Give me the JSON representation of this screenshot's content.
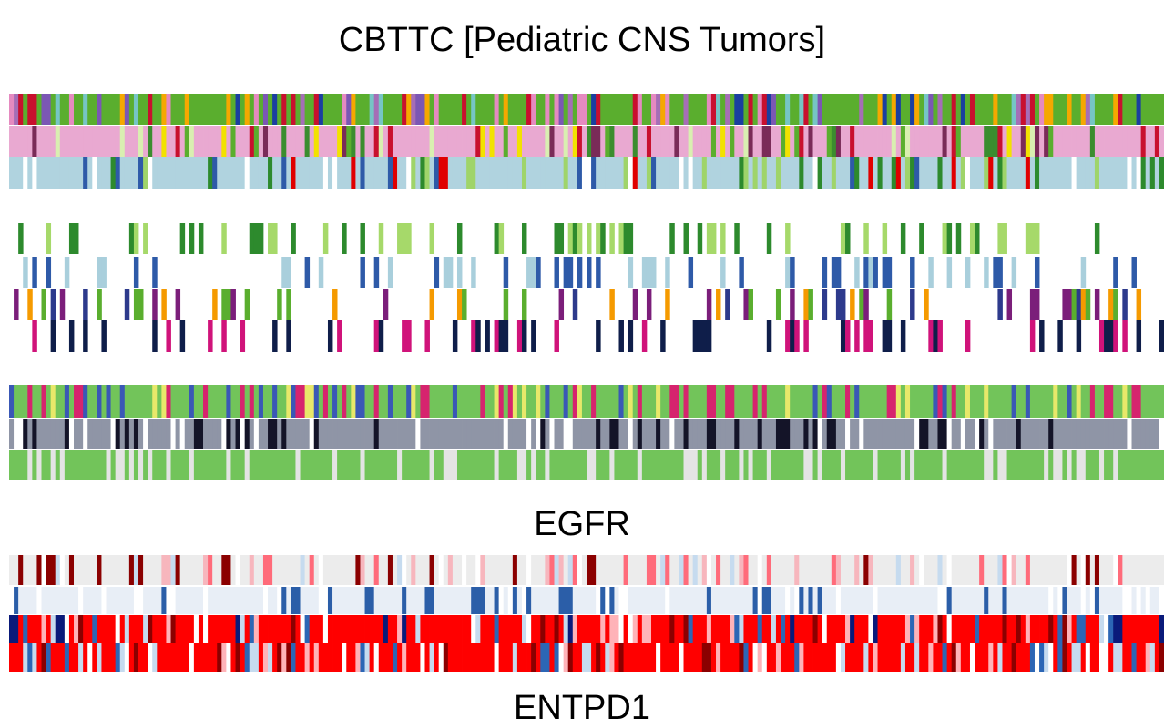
{
  "header": {
    "title": "CBTTC [Pediatric CNS Tumors]"
  },
  "panels": {
    "egfr_label": "EGFR",
    "next_label": "ENTPD1"
  },
  "chart_data": {
    "type": "heatmap",
    "title": "CBTTC [Pediatric CNS Tumors]",
    "samples": 250,
    "gene_panels": [
      "EGFR",
      "ENTPD1"
    ],
    "tracks": [
      {
        "group": "annotation",
        "palette": [
          "#5aae2e",
          "#7b57b4",
          "#e58ac0",
          "#f5a800",
          "#1a3fa0",
          "#c8102e",
          "#76c5c5",
          "#a56eb6"
        ]
      },
      {
        "group": "annotation",
        "palette": [
          "#e9a9d1",
          "#e9a9d1",
          "#3b8d2f",
          "#f2e200",
          "#c8102e",
          "#7a2b58",
          "#d9efb1",
          "#5aae2e"
        ]
      },
      {
        "group": "annotation",
        "palette": [
          "#b0d3df",
          "#b0d3df",
          "#e00000",
          "#2d8a2d",
          "#9fd46a",
          "#2e5aa8",
          "#ffffff"
        ]
      },
      {
        "group": "sparse",
        "palette": [
          "#2d8a2d",
          "#a6d96a"
        ]
      },
      {
        "group": "sparse",
        "palette": [
          "#a9cfdc",
          "#2e5aa8"
        ]
      },
      {
        "group": "sparse",
        "palette": [
          "#f59a00",
          "#5aae2e",
          "#7b1e7a",
          "#2d3a8c"
        ]
      },
      {
        "group": "sparse",
        "palette": [
          "#d0137a",
          "#0f1e4a"
        ]
      },
      {
        "group": "clinical",
        "palette": [
          "#72c45a",
          "#3a58b6",
          "#e8e86a",
          "#d6246e"
        ]
      },
      {
        "group": "clinical",
        "palette": [
          "#8f95a6",
          "#141428",
          "#ffffff"
        ]
      },
      {
        "group": "clinical",
        "palette": [
          "#72c45a",
          "#e4e4e4"
        ]
      },
      {
        "group": "EGFR",
        "palette": [
          "#ececec",
          "#f7b6bd",
          "#ff6b7a",
          "#8b0000",
          "#ffffff",
          "#c6dbef"
        ]
      },
      {
        "group": "EGFR",
        "palette": [
          "#e8eef6",
          "#ffffff",
          "#2b5ea8"
        ]
      },
      {
        "group": "EGFR",
        "palette": [
          "#ff0000",
          "#ffb3b8",
          "#c6dbef",
          "#2c66b5",
          "#8b0000",
          "#ffffff",
          "#0a1a7a"
        ]
      },
      {
        "group": "EGFR",
        "palette": [
          "#ff0000",
          "#ffb3b8",
          "#c6dbef",
          "#2c66b5",
          "#8b0000",
          "#ffffff"
        ]
      }
    ]
  }
}
